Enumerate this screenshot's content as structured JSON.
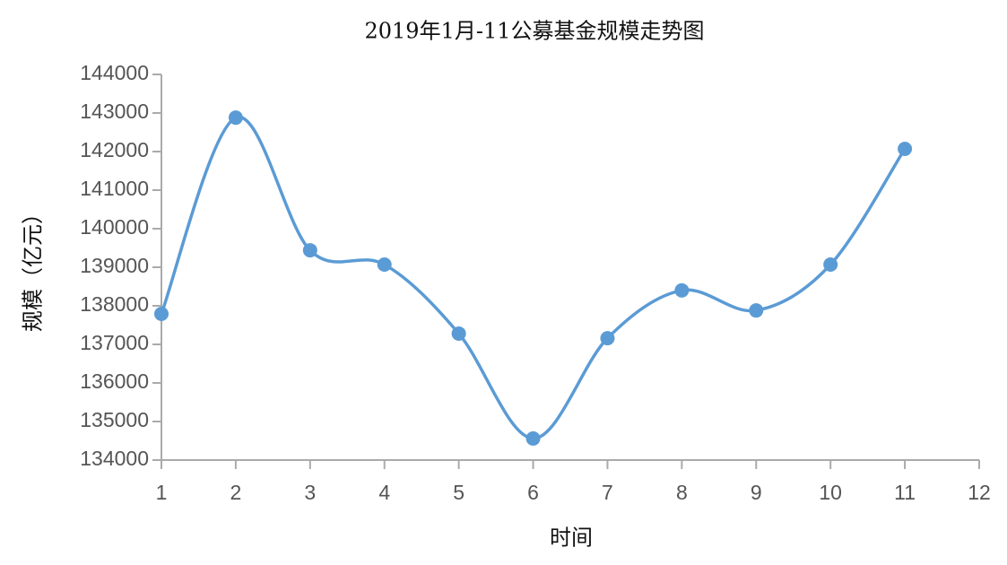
{
  "chart_data": {
    "type": "line",
    "title": "2019年1月-11公募基金规模走势图",
    "x_label": "时间",
    "y_label": "规模（亿元）",
    "x": [
      1,
      2,
      3,
      4,
      5,
      6,
      7,
      8,
      9,
      10,
      11
    ],
    "series": [
      {
        "name": "规模",
        "color": "#5b9bd5",
        "values": [
          137790,
          142880,
          139440,
          139070,
          137280,
          134560,
          137160,
          138400,
          137880,
          139070,
          142070
        ]
      }
    ],
    "xlim": [
      1,
      12
    ],
    "xticks": [
      1,
      2,
      3,
      4,
      5,
      6,
      7,
      8,
      9,
      10,
      11,
      12
    ],
    "ylim": [
      134000,
      144000
    ],
    "yticks": [
      134000,
      135000,
      136000,
      137000,
      138000,
      139000,
      140000,
      141000,
      142000,
      143000,
      144000
    ],
    "smooth": true
  }
}
